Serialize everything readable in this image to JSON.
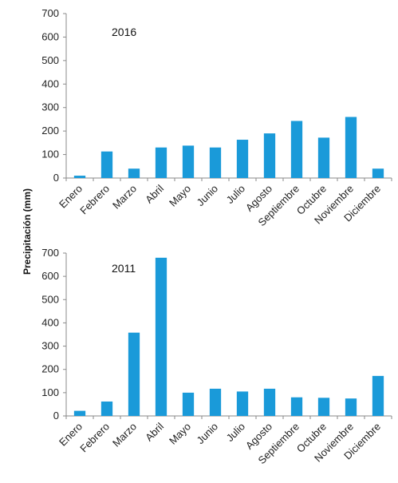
{
  "figure": {
    "ylabel": "Precipitación  (mm)"
  },
  "chart_data": [
    {
      "type": "bar",
      "title": "2016",
      "categories": [
        "Enero",
        "Febrero",
        "Marzo",
        "Abril",
        "Mayo",
        "Junio",
        "Julio",
        "Agosto",
        "Septiembre",
        "Octubre",
        "Noviembre",
        "Diciembre"
      ],
      "values": [
        10,
        113,
        40,
        130,
        138,
        130,
        163,
        190,
        243,
        172,
        260,
        40
      ],
      "ylim": [
        0,
        700
      ],
      "yticks": [
        0,
        100,
        200,
        300,
        400,
        500,
        600,
        700
      ],
      "bar_color": "#1a9ad9",
      "grid": false
    },
    {
      "type": "bar",
      "title": "2011",
      "categories": [
        "Enero",
        "Febrero",
        "Marzo",
        "Abril",
        "Mayo",
        "Junio",
        "Julio",
        "Agosto",
        "Septiembre",
        "Octubre",
        "Noviembre",
        "Diciembre"
      ],
      "values": [
        22,
        62,
        358,
        680,
        100,
        117,
        105,
        117,
        80,
        78,
        75,
        172
      ],
      "ylim": [
        0,
        700
      ],
      "yticks": [
        0,
        100,
        200,
        300,
        400,
        500,
        600,
        700
      ],
      "bar_color": "#1a9ad9",
      "grid": false
    }
  ]
}
